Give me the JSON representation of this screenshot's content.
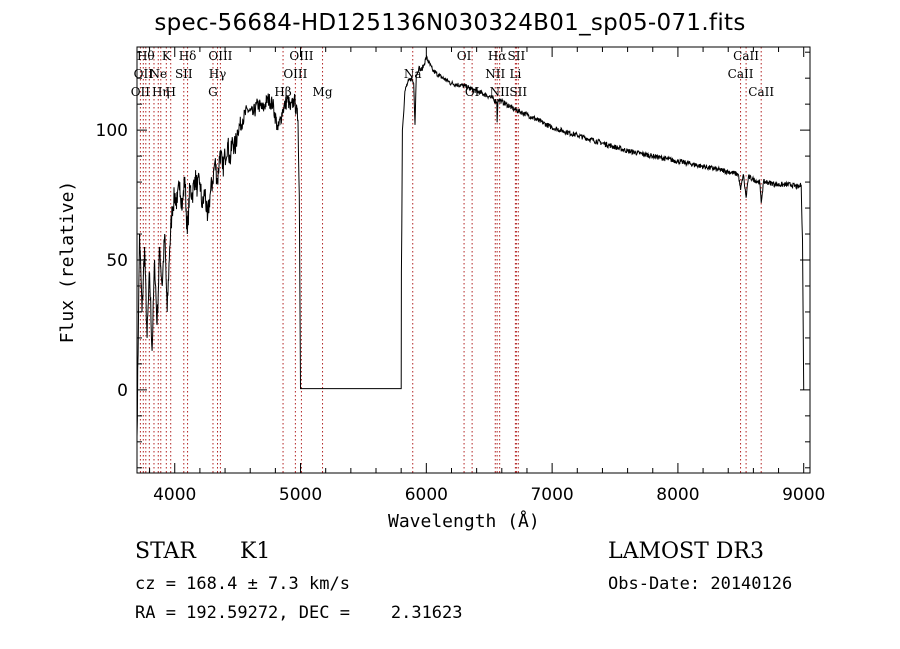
{
  "chart_data": {
    "type": "line",
    "title": "spec-56684-HD125136N030324B01_sp05-071.fits",
    "xlabel": "Wavelength (Å)",
    "ylabel": "Flux (relative)",
    "xlim": [
      3700,
      9050
    ],
    "ylim": [
      -32,
      132
    ],
    "xticks": [
      4000,
      5000,
      6000,
      7000,
      8000,
      9000
    ],
    "yticks": [
      0,
      50,
      100
    ],
    "series": [
      {
        "x": [
          3700,
          3720,
          3740,
          3760,
          3780,
          3800,
          3820,
          3840,
          3860,
          3880,
          3900,
          3920,
          3940,
          3960,
          3980,
          4000,
          4020,
          4040,
          4060,
          4080,
          4100,
          4120,
          4140,
          4160,
          4180,
          4200,
          4220,
          4240,
          4260,
          4280,
          4300,
          4320,
          4340,
          4360,
          4380,
          4400,
          4420,
          4440,
          4460,
          4480,
          4500,
          4540,
          4580,
          4620,
          4660,
          4700,
          4740,
          4780,
          4820,
          4860,
          4880,
          4900,
          4920,
          4950,
          4980,
          4990,
          5000,
          5200,
          5400,
          5600,
          5800,
          5802,
          5810,
          5830,
          5850,
          5880,
          5900,
          5910,
          5920,
          5940,
          5960,
          5980,
          6000,
          6050,
          6100,
          6200,
          6300,
          6400,
          6500,
          6560,
          6563,
          6570,
          6600,
          6700,
          6800,
          7000,
          7200,
          7400,
          7600,
          7800,
          8000,
          8200,
          8400,
          8480,
          8498,
          8520,
          8542,
          8560,
          8600,
          8650,
          8662,
          8680,
          8700,
          8800,
          8900,
          8960,
          8980,
          8990,
          9000
        ],
        "y": [
          -18,
          60,
          30,
          55,
          20,
          45,
          15,
          50,
          25,
          55,
          40,
          60,
          30,
          55,
          70,
          75,
          72,
          80,
          70,
          82,
          60,
          78,
          75,
          82,
          78,
          80,
          70,
          77,
          65,
          75,
          80,
          88,
          80,
          92,
          85,
          90,
          95,
          88,
          96,
          93,
          100,
          104,
          108,
          106,
          110,
          108,
          112,
          110,
          100,
          108,
          110,
          112,
          108,
          112,
          104,
          75,
          0.5,
          0.5,
          0.5,
          0.5,
          0.5,
          45,
          100,
          115,
          118,
          120,
          118,
          102,
          121,
          124,
          123,
          125,
          128,
          123,
          121,
          118,
          117,
          115,
          113,
          111,
          103,
          112,
          111,
          108,
          106,
          101,
          98,
          95,
          92,
          90,
          88,
          86,
          84,
          83,
          77,
          83,
          74,
          82,
          81,
          80,
          72,
          80,
          80,
          79,
          79,
          78,
          79,
          58,
          0
        ]
      }
    ],
    "lines": [
      {
        "x": 3727,
        "row": 2,
        "label": "OII"
      },
      {
        "x": 3750,
        "row": 1,
        "label": "OII"
      },
      {
        "x": 3770,
        "row": 0,
        "label": "Hθ"
      },
      {
        "x": 3798,
        "row": 0,
        "label": ""
      },
      {
        "x": 3835,
        "row": 0,
        "label": ""
      },
      {
        "x": 3869,
        "row": 1,
        "label": "Ne"
      },
      {
        "x": 3889,
        "row": 2,
        "label": "Hη"
      },
      {
        "x": 3933,
        "row": 0,
        "label": "K"
      },
      {
        "x": 3968,
        "row": 2,
        "label": "H"
      },
      {
        "x": 4072,
        "row": 1,
        "label": "SII"
      },
      {
        "x": 4102,
        "row": 0,
        "label": "Hδ"
      },
      {
        "x": 4304,
        "row": 2,
        "label": "G"
      },
      {
        "x": 4340,
        "row": 1,
        "label": "Hγ"
      },
      {
        "x": 4363,
        "row": 0,
        "label": "OIII"
      },
      {
        "x": 4861,
        "row": 2,
        "label": "Hβ"
      },
      {
        "x": 4959,
        "row": 1,
        "label": "OIII"
      },
      {
        "x": 5007,
        "row": 0,
        "label": "OIII"
      },
      {
        "x": 5175,
        "row": 2,
        "label": "Mg"
      },
      {
        "x": 5892,
        "row": 1,
        "label": "Na"
      },
      {
        "x": 6300,
        "row": 0,
        "label": "OI"
      },
      {
        "x": 6364,
        "row": 2,
        "label": "OI"
      },
      {
        "x": 6548,
        "row": 1,
        "label": "NII"
      },
      {
        "x": 6563,
        "row": 0,
        "label": "Hα"
      },
      {
        "x": 6583,
        "row": 2,
        "label": "NII"
      },
      {
        "x": 6708,
        "row": 1,
        "label": "Li"
      },
      {
        "x": 6716,
        "row": 0,
        "label": "SII"
      },
      {
        "x": 6731,
        "row": 2,
        "label": "SII"
      },
      {
        "x": 8498,
        "row": 1,
        "label": "CaII"
      },
      {
        "x": 8542,
        "row": 0,
        "label": "CaII"
      },
      {
        "x": 8662,
        "row": 2,
        "label": "CaII"
      }
    ]
  },
  "info": {
    "class": "STAR",
    "subclass": "K1",
    "survey": "LAMOST DR3",
    "cz": "cz = 168.4 ± 7.3 km/s",
    "obs_date": "Obs-Date: 20140126",
    "coords": "RA = 192.59272, DEC =    2.31623"
  },
  "colors": {
    "line": "#000000",
    "marker": "#b22222"
  }
}
